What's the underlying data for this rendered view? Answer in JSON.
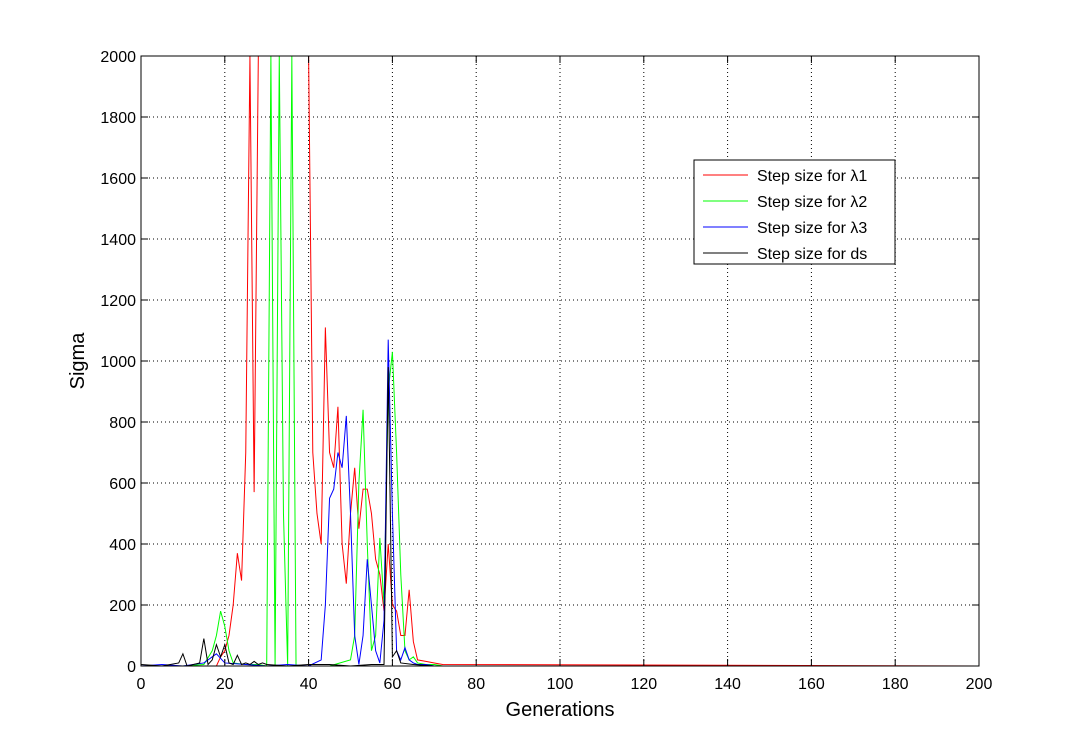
{
  "chart_data": {
    "type": "line",
    "title": "",
    "xlabel": "Generations",
    "ylabel": "Sigma",
    "xlim": [
      0,
      200
    ],
    "ylim": [
      0,
      2000
    ],
    "xticks": [
      "0",
      "20",
      "40",
      "60",
      "80",
      "100",
      "120",
      "140",
      "160",
      "180",
      "200"
    ],
    "yticks": [
      "0",
      "200",
      "400",
      "600",
      "800",
      "1000",
      "1200",
      "1400",
      "1600",
      "1800",
      "2000"
    ],
    "grid": true,
    "legend_position": "top-right",
    "series": [
      {
        "name": "Step size for λ1",
        "color": "#ff0000",
        "x": [
          0,
          2,
          4,
          6,
          8,
          10,
          12,
          14,
          16,
          18,
          19,
          20,
          21,
          22,
          23,
          24,
          25,
          26,
          27,
          28,
          29,
          30,
          31,
          32,
          33,
          34,
          35,
          36,
          37,
          38,
          39,
          40,
          41,
          42,
          43,
          44,
          45,
          46,
          47,
          48,
          49,
          50,
          51,
          52,
          53,
          54,
          55,
          56,
          57,
          58,
          59,
          60,
          61,
          62,
          63,
          64,
          65,
          66,
          68,
          70,
          72
        ],
        "y": [
          0,
          0,
          0,
          0,
          0,
          0,
          0,
          0,
          0,
          0,
          30,
          50,
          100,
          200,
          370,
          280,
          700,
          2000,
          570,
          2000,
          2000,
          2000,
          2000,
          2000,
          2000,
          2000,
          2000,
          2000,
          2000,
          2000,
          2000,
          2000,
          700,
          500,
          400,
          1110,
          700,
          650,
          850,
          400,
          270,
          500,
          650,
          450,
          580,
          580,
          500,
          350,
          300,
          180,
          400,
          200,
          180,
          100,
          100,
          250,
          80,
          20,
          15,
          10,
          5
        ]
      },
      {
        "name": "Step size for λ2",
        "color": "#00ff00",
        "x": [
          0,
          5,
          10,
          15,
          17,
          18,
          19,
          20,
          21,
          22,
          25,
          28,
          30,
          31,
          32,
          33,
          34,
          35,
          36,
          37,
          38,
          40,
          45,
          50,
          51,
          52,
          53,
          54,
          55,
          56,
          57,
          58,
          59,
          60,
          61,
          62,
          63,
          64,
          65,
          66,
          68,
          70,
          72
        ],
        "y": [
          0,
          0,
          0,
          5,
          50,
          100,
          180,
          130,
          50,
          10,
          5,
          5,
          0,
          2000,
          0,
          2000,
          500,
          0,
          2000,
          0,
          0,
          0,
          0,
          20,
          100,
          600,
          840,
          400,
          50,
          100,
          420,
          200,
          900,
          1030,
          700,
          300,
          50,
          20,
          30,
          10,
          5,
          5,
          0
        ]
      },
      {
        "name": "Step size for λ3",
        "color": "#0000ff",
        "x": [
          0,
          5,
          10,
          15,
          18,
          20,
          25,
          30,
          35,
          40,
          43,
          44,
          45,
          46,
          47,
          48,
          49,
          50,
          51,
          52,
          53,
          54,
          55,
          56,
          57,
          58,
          59,
          60,
          61,
          62,
          63,
          64,
          65,
          66,
          68,
          70,
          72
        ],
        "y": [
          0,
          5,
          0,
          10,
          40,
          10,
          5,
          0,
          5,
          0,
          20,
          200,
          550,
          580,
          700,
          650,
          820,
          500,
          100,
          5,
          100,
          350,
          200,
          50,
          10,
          150,
          1070,
          500,
          50,
          20,
          60,
          20,
          10,
          5,
          5,
          0,
          0
        ]
      },
      {
        "name": "Step size for ds",
        "color": "#000000",
        "x": [
          0,
          5,
          9,
          10,
          11,
          14,
          15,
          16,
          17,
          18,
          19,
          20,
          21,
          22,
          23,
          24,
          25,
          26,
          27,
          28,
          29,
          30,
          35,
          40,
          45,
          50,
          55,
          58,
          59,
          60,
          61,
          62,
          65,
          70,
          72
        ],
        "y": [
          5,
          0,
          10,
          40,
          0,
          10,
          90,
          5,
          20,
          70,
          30,
          70,
          10,
          5,
          35,
          5,
          10,
          5,
          15,
          5,
          10,
          5,
          0,
          5,
          5,
          0,
          5,
          5,
          980,
          30,
          50,
          10,
          5,
          0,
          0
        ]
      }
    ]
  }
}
